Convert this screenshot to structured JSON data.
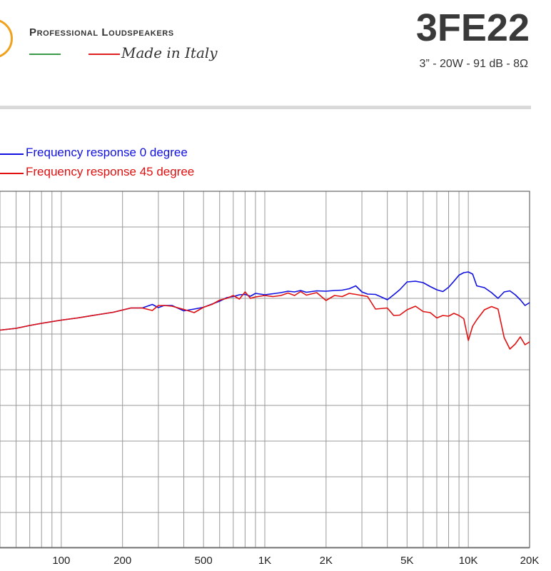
{
  "header": {
    "brand": "Professional Loudspeakers",
    "tagline": "Made in Italy",
    "model": "3FE22",
    "specs": "3” - 20W - 91 dB - 8Ω"
  },
  "colors": {
    "series_0": "#1010e0",
    "series_45": "#e01010",
    "grid": "#999999",
    "logo_ring": "#f0a21e"
  },
  "chart_data": {
    "type": "line",
    "x_scale": "log",
    "xlim": [
      50,
      20000
    ],
    "xticks": [
      {
        "value": 100,
        "label": "100"
      },
      {
        "value": 200,
        "label": "200"
      },
      {
        "value": 500,
        "label": "500"
      },
      {
        "value": 1000,
        "label": "1K"
      },
      {
        "value": 2000,
        "label": "2K"
      },
      {
        "value": 5000,
        "label": "5K"
      },
      {
        "value": 10000,
        "label": "10K"
      },
      {
        "value": 20000,
        "label": "20K"
      }
    ],
    "grid": true,
    "legend": "top-left",
    "series": [
      {
        "name": "Frequency response 0 degree",
        "color": "#1010e0",
        "points": [
          [
            50,
            0.89
          ],
          [
            60,
            0.84
          ],
          [
            70,
            0.76
          ],
          [
            80,
            0.7
          ],
          [
            100,
            0.61
          ],
          [
            120,
            0.55
          ],
          [
            150,
            0.46
          ],
          [
            180,
            0.39
          ],
          [
            220,
            0.27
          ],
          [
            250,
            0.27
          ],
          [
            280,
            0.17
          ],
          [
            300,
            0.26
          ],
          [
            320,
            0.2
          ],
          [
            350,
            0.2
          ],
          [
            400,
            0.35
          ],
          [
            450,
            0.3
          ],
          [
            500,
            0.25
          ],
          [
            550,
            0.16
          ],
          [
            600,
            0.08
          ],
          [
            650,
            -0.02
          ],
          [
            700,
            -0.05
          ],
          [
            750,
            -0.1
          ],
          [
            800,
            -0.11
          ],
          [
            850,
            -0.06
          ],
          [
            900,
            -0.14
          ],
          [
            1000,
            -0.1
          ],
          [
            1100,
            -0.13
          ],
          [
            1200,
            -0.16
          ],
          [
            1300,
            -0.2
          ],
          [
            1400,
            -0.18
          ],
          [
            1500,
            -0.22
          ],
          [
            1600,
            -0.17
          ],
          [
            1700,
            -0.19
          ],
          [
            1800,
            -0.21
          ],
          [
            2000,
            -0.2
          ],
          [
            2200,
            -0.22
          ],
          [
            2400,
            -0.23
          ],
          [
            2600,
            -0.27
          ],
          [
            2800,
            -0.35
          ],
          [
            3000,
            -0.18
          ],
          [
            3200,
            -0.12
          ],
          [
            3500,
            -0.11
          ],
          [
            3800,
            -0.02
          ],
          [
            4000,
            0.04
          ],
          [
            4300,
            -0.1
          ],
          [
            4600,
            -0.24
          ],
          [
            5000,
            -0.46
          ],
          [
            5500,
            -0.48
          ],
          [
            6000,
            -0.44
          ],
          [
            6500,
            -0.33
          ],
          [
            7000,
            -0.24
          ],
          [
            7500,
            -0.19
          ],
          [
            8000,
            -0.31
          ],
          [
            8500,
            -0.48
          ],
          [
            9000,
            -0.65
          ],
          [
            9500,
            -0.72
          ],
          [
            10000,
            -0.74
          ],
          [
            10500,
            -0.68
          ],
          [
            11000,
            -0.35
          ],
          [
            12000,
            -0.3
          ],
          [
            13000,
            -0.16
          ],
          [
            14000,
            0.0
          ],
          [
            15000,
            -0.18
          ],
          [
            16000,
            -0.21
          ],
          [
            17000,
            -0.1
          ],
          [
            18000,
            0.04
          ],
          [
            19000,
            0.2
          ],
          [
            20000,
            0.12
          ]
        ]
      },
      {
        "name": "Frequency response 45 degree",
        "color": "#e01010",
        "points": [
          [
            50,
            0.89
          ],
          [
            60,
            0.84
          ],
          [
            70,
            0.76
          ],
          [
            80,
            0.7
          ],
          [
            100,
            0.61
          ],
          [
            120,
            0.55
          ],
          [
            150,
            0.46
          ],
          [
            180,
            0.39
          ],
          [
            220,
            0.27
          ],
          [
            250,
            0.27
          ],
          [
            280,
            0.34
          ],
          [
            300,
            0.2
          ],
          [
            320,
            0.2
          ],
          [
            350,
            0.22
          ],
          [
            400,
            0.31
          ],
          [
            450,
            0.4
          ],
          [
            500,
            0.25
          ],
          [
            550,
            0.17
          ],
          [
            600,
            0.05
          ],
          [
            650,
            0.0
          ],
          [
            700,
            -0.08
          ],
          [
            750,
            0.02
          ],
          [
            800,
            -0.18
          ],
          [
            850,
            0.0
          ],
          [
            900,
            -0.04
          ],
          [
            1000,
            -0.08
          ],
          [
            1100,
            -0.05
          ],
          [
            1200,
            -0.08
          ],
          [
            1300,
            -0.15
          ],
          [
            1400,
            -0.08
          ],
          [
            1500,
            -0.19
          ],
          [
            1600,
            -0.09
          ],
          [
            1800,
            -0.16
          ],
          [
            2000,
            0.06
          ],
          [
            2200,
            -0.08
          ],
          [
            2400,
            -0.05
          ],
          [
            2600,
            -0.14
          ],
          [
            2800,
            -0.11
          ],
          [
            3000,
            -0.08
          ],
          [
            3200,
            -0.05
          ],
          [
            3500,
            0.3
          ],
          [
            4000,
            0.27
          ],
          [
            4300,
            0.48
          ],
          [
            4600,
            0.47
          ],
          [
            5000,
            0.32
          ],
          [
            5500,
            0.22
          ],
          [
            6000,
            0.37
          ],
          [
            6500,
            0.4
          ],
          [
            7000,
            0.55
          ],
          [
            7500,
            0.48
          ],
          [
            8000,
            0.5
          ],
          [
            8500,
            0.42
          ],
          [
            9000,
            0.48
          ],
          [
            9500,
            0.57
          ],
          [
            10000,
            1.18
          ],
          [
            10500,
            0.78
          ],
          [
            11000,
            0.6
          ],
          [
            12000,
            0.32
          ],
          [
            13000,
            0.23
          ],
          [
            14000,
            0.3
          ],
          [
            15000,
            1.1
          ],
          [
            16000,
            1.42
          ],
          [
            17000,
            1.28
          ],
          [
            18000,
            1.08
          ],
          [
            19000,
            1.3
          ],
          [
            20000,
            1.22
          ]
        ]
      }
    ]
  }
}
